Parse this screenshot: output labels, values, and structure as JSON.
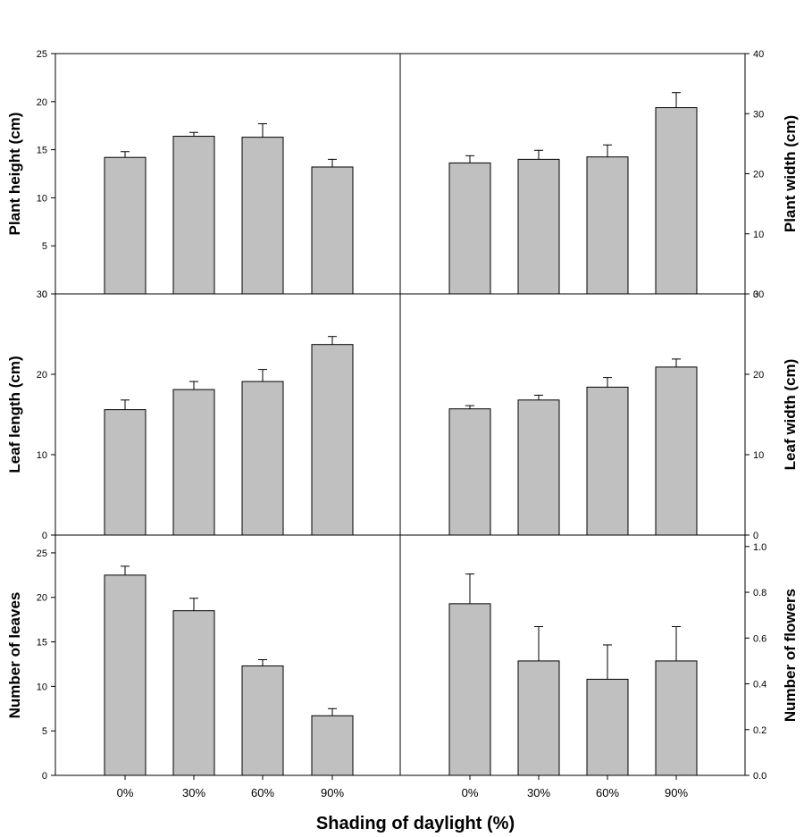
{
  "figure": {
    "xlabel": "Shading of daylight (%)"
  },
  "colors": {
    "bar_fill": "#c0c0c0",
    "bar_stroke": "#000000",
    "axis": "#000000"
  },
  "chart_data": [
    {
      "type": "bar",
      "panel": "top-left",
      "ylabel": "Plant height (cm)",
      "categories": [
        "0%",
        "30%",
        "60%",
        "90%"
      ],
      "values": [
        14.2,
        16.4,
        16.3,
        13.2
      ],
      "errors": [
        0.6,
        0.4,
        1.4,
        0.8
      ],
      "ylim": [
        0,
        25
      ],
      "yticks": [
        0,
        5,
        10,
        15,
        20,
        25
      ],
      "yaxis_side": "left",
      "grid": false
    },
    {
      "type": "bar",
      "panel": "top-right",
      "ylabel": "Plant width (cm)",
      "categories": [
        "0%",
        "30%",
        "60%",
        "90%"
      ],
      "values": [
        21.8,
        22.4,
        22.8,
        31.0
      ],
      "errors": [
        1.2,
        1.5,
        2.0,
        2.5
      ],
      "ylim": [
        0,
        40
      ],
      "yticks": [
        0,
        10,
        20,
        30,
        40
      ],
      "yaxis_side": "right",
      "grid": false
    },
    {
      "type": "bar",
      "panel": "middle-left",
      "ylabel": "Leaf length (cm)",
      "categories": [
        "0%",
        "30%",
        "60%",
        "90%"
      ],
      "values": [
        15.6,
        18.1,
        19.1,
        23.7
      ],
      "errors": [
        1.2,
        1.0,
        1.5,
        1.0
      ],
      "ylim": [
        0,
        30
      ],
      "yticks": [
        0,
        10,
        20,
        30
      ],
      "yaxis_side": "left",
      "grid": false
    },
    {
      "type": "bar",
      "panel": "middle-right",
      "ylabel": "Leaf width (cm)",
      "categories": [
        "0%",
        "30%",
        "60%",
        "90%"
      ],
      "values": [
        15.7,
        16.8,
        18.4,
        20.9
      ],
      "errors": [
        0.4,
        0.6,
        1.2,
        1.0
      ],
      "ylim": [
        0,
        30
      ],
      "yticks": [
        0,
        10,
        20,
        30
      ],
      "yaxis_side": "right",
      "grid": false
    },
    {
      "type": "bar",
      "panel": "bottom-left",
      "ylabel": "Number of  leaves",
      "categories": [
        "0%",
        "30%",
        "60%",
        "90%"
      ],
      "values": [
        22.5,
        18.5,
        12.3,
        6.7
      ],
      "errors": [
        1.0,
        1.4,
        0.7,
        0.8
      ],
      "ylim": [
        0,
        27
      ],
      "yticks": [
        0,
        5,
        10,
        15,
        20,
        25
      ],
      "yaxis_side": "left",
      "grid": false
    },
    {
      "type": "bar",
      "panel": "bottom-right",
      "ylabel": "Number of flowers",
      "categories": [
        "0%",
        "30%",
        "60%",
        "90%"
      ],
      "values": [
        0.75,
        0.5,
        0.42,
        0.5
      ],
      "errors": [
        0.13,
        0.15,
        0.15,
        0.15
      ],
      "ylim": [
        0,
        1.05
      ],
      "yticks": [
        0.0,
        0.2,
        0.4,
        0.6,
        0.8,
        1.0
      ],
      "yticklabels": [
        "0.0",
        "0.2",
        "0.4",
        "0.6",
        "0.8",
        "1.0"
      ],
      "yaxis_side": "right",
      "grid": false
    }
  ]
}
